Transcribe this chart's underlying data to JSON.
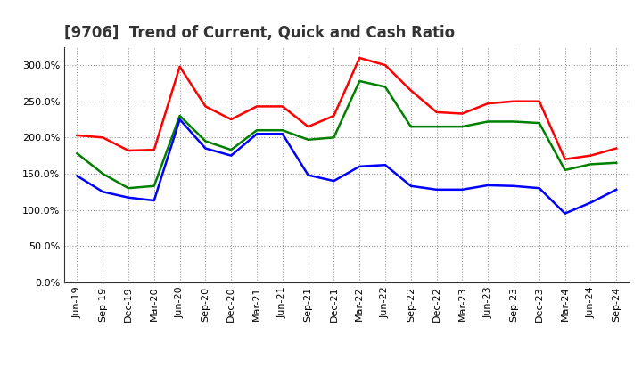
{
  "title": "[9706]  Trend of Current, Quick and Cash Ratio",
  "x_labels": [
    "Jun-19",
    "Sep-19",
    "Dec-19",
    "Mar-20",
    "Jun-20",
    "Sep-20",
    "Dec-20",
    "Mar-21",
    "Jun-21",
    "Sep-21",
    "Dec-21",
    "Mar-22",
    "Jun-22",
    "Sep-22",
    "Dec-22",
    "Mar-23",
    "Jun-23",
    "Sep-23",
    "Dec-23",
    "Mar-24",
    "Jun-24",
    "Sep-24"
  ],
  "current_ratio": [
    203,
    200,
    182,
    183,
    298,
    243,
    225,
    243,
    243,
    215,
    230,
    310,
    300,
    265,
    235,
    233,
    247,
    250,
    250,
    170,
    175,
    185
  ],
  "quick_ratio": [
    178,
    150,
    130,
    133,
    230,
    195,
    183,
    210,
    210,
    197,
    200,
    278,
    270,
    215,
    215,
    215,
    222,
    222,
    220,
    155,
    163,
    165
  ],
  "cash_ratio": [
    147,
    125,
    117,
    113,
    225,
    185,
    175,
    205,
    205,
    148,
    140,
    160,
    162,
    133,
    128,
    128,
    134,
    133,
    130,
    95,
    110,
    128
  ],
  "current_color": "#FF0000",
  "quick_color": "#008000",
  "cash_color": "#0000FF",
  "ylim": [
    0,
    325
  ],
  "yticks": [
    0,
    50,
    100,
    150,
    200,
    250,
    300
  ],
  "background_color": "#FFFFFF",
  "plot_bg_color": "#FFFFFF",
  "grid_color": "#999999",
  "line_width": 1.8,
  "title_fontsize": 12,
  "tick_fontsize": 8,
  "legend_fontsize": 9.5
}
